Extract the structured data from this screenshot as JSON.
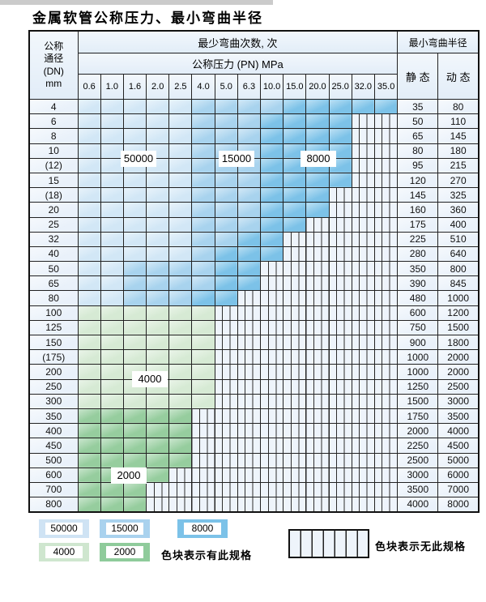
{
  "title": "金属软管公称压力、最小弯曲半径",
  "colors": {
    "spec_50000": "#d2e7f6",
    "spec_15000": "#a8d3ee",
    "spec_8000": "#7cc2e8",
    "spec_4000": "#d6ead4",
    "spec_2000": "#96cd9e",
    "no_spec_bg": "#eef4fb",
    "grid_line": "#222222",
    "header_bg": "#e2edf8"
  },
  "table": {
    "dn_header_lines": [
      "公称",
      "通径",
      "(DN)",
      "mm"
    ],
    "bend_title": "最少弯曲次数, 次",
    "pressure_title": "公称压力 (PN) MPa",
    "radius_title": "最小弯曲半径",
    "static_label": "静 态",
    "dynamic_label": "动 态",
    "pressures": [
      "0.6",
      "1.0",
      "1.6",
      "2.0",
      "2.5",
      "4.0",
      "5.0",
      "6.3",
      "10.0",
      "15.0",
      "20.0",
      "25.0",
      "32.0",
      "35.0"
    ],
    "zone_legend_key": {
      "a": "50000",
      "b": "15000",
      "c": "8000",
      "d": "4000",
      "e": "2000",
      "x": "no-spec"
    },
    "rows": [
      {
        "dn": "4",
        "zones": "aaaaabbbbccccc",
        "static": "35",
        "dynamic": "80"
      },
      {
        "dn": "6",
        "zones": "aaaaabbbccccxx",
        "static": "50",
        "dynamic": "110"
      },
      {
        "dn": "8",
        "zones": "aaaaabbbccccxx",
        "static": "65",
        "dynamic": "145"
      },
      {
        "dn": "10",
        "zones": "aaaaabbbccccxx",
        "static": "80",
        "dynamic": "180"
      },
      {
        "dn": "(12)",
        "zones": "aaaaabbbccccxx",
        "static": "95",
        "dynamic": "215"
      },
      {
        "dn": "15",
        "zones": "aaaaabbbccccxx",
        "static": "120",
        "dynamic": "270"
      },
      {
        "dn": "(18)",
        "zones": "aaaaabbbcccxxx",
        "static": "145",
        "dynamic": "325"
      },
      {
        "dn": "20",
        "zones": "aaaaabbbcccxxx",
        "static": "160",
        "dynamic": "360"
      },
      {
        "dn": "25",
        "zones": "aaaaabbbccxxxx",
        "static": "175",
        "dynamic": "400"
      },
      {
        "dn": "32",
        "zones": "aaaaabbccxxxxx",
        "static": "225",
        "dynamic": "510"
      },
      {
        "dn": "40",
        "zones": "aaaaabcccxxxxx",
        "static": "280",
        "dynamic": "640"
      },
      {
        "dn": "50",
        "zones": "aabbbbccxxxxxx",
        "static": "350",
        "dynamic": "800"
      },
      {
        "dn": "65",
        "zones": "aabbbbccxxxxxx",
        "static": "390",
        "dynamic": "845"
      },
      {
        "dn": "80",
        "zones": "aabbbccxxxxxxx",
        "static": "480",
        "dynamic": "1000"
      },
      {
        "dn": "100",
        "zones": "ddddddxxxxxxxx",
        "static": "600",
        "dynamic": "1200"
      },
      {
        "dn": "125",
        "zones": "ddddddxxxxxxxx",
        "static": "750",
        "dynamic": "1500"
      },
      {
        "dn": "150",
        "zones": "ddddddxxxxxxxx",
        "static": "900",
        "dynamic": "1800"
      },
      {
        "dn": "(175)",
        "zones": "ddddddxxxxxxxx",
        "static": "1000",
        "dynamic": "2000"
      },
      {
        "dn": "200",
        "zones": "ddddddxxxxxxxx",
        "static": "1000",
        "dynamic": "2000"
      },
      {
        "dn": "250",
        "zones": "ddddddxxxxxxxx",
        "static": "1250",
        "dynamic": "2500"
      },
      {
        "dn": "300",
        "zones": "ddddddxxxxxxxx",
        "static": "1500",
        "dynamic": "3000"
      },
      {
        "dn": "350",
        "zones": "eeeeexxxxxxxxx",
        "static": "1750",
        "dynamic": "3500"
      },
      {
        "dn": "400",
        "zones": "eeeeexxxxxxxxx",
        "static": "2000",
        "dynamic": "4000"
      },
      {
        "dn": "450",
        "zones": "eeeeexxxxxxxxx",
        "static": "2250",
        "dynamic": "4500"
      },
      {
        "dn": "500",
        "zones": "eeeeexxxxxxxxx",
        "static": "2500",
        "dynamic": "5000"
      },
      {
        "dn": "600",
        "zones": "eeeexxxxxxxxxx",
        "static": "3000",
        "dynamic": "6000"
      },
      {
        "dn": "700",
        "zones": "eeexxxxxxxxxxx",
        "static": "3500",
        "dynamic": "7000"
      },
      {
        "dn": "800",
        "zones": "eeexxxxxxxxxxx",
        "static": "4000",
        "dynamic": "8000"
      }
    ]
  },
  "zone_labels": {
    "l50000": "50000",
    "l15000": "15000",
    "l8000": "8000",
    "l4000": "4000",
    "l2000": "2000"
  },
  "legend": {
    "items": [
      {
        "label": "50000",
        "color": "#cfe3f4"
      },
      {
        "label": "15000",
        "color": "#a9d2ee"
      },
      {
        "label": "8000",
        "color": "#7cc2e8"
      },
      {
        "label": "4000",
        "color": "#cfe6cf"
      },
      {
        "label": "2000",
        "color": "#8fcb9b"
      }
    ],
    "has_note": "色块表示有此规格",
    "none_note": "色块表示无此规格"
  }
}
